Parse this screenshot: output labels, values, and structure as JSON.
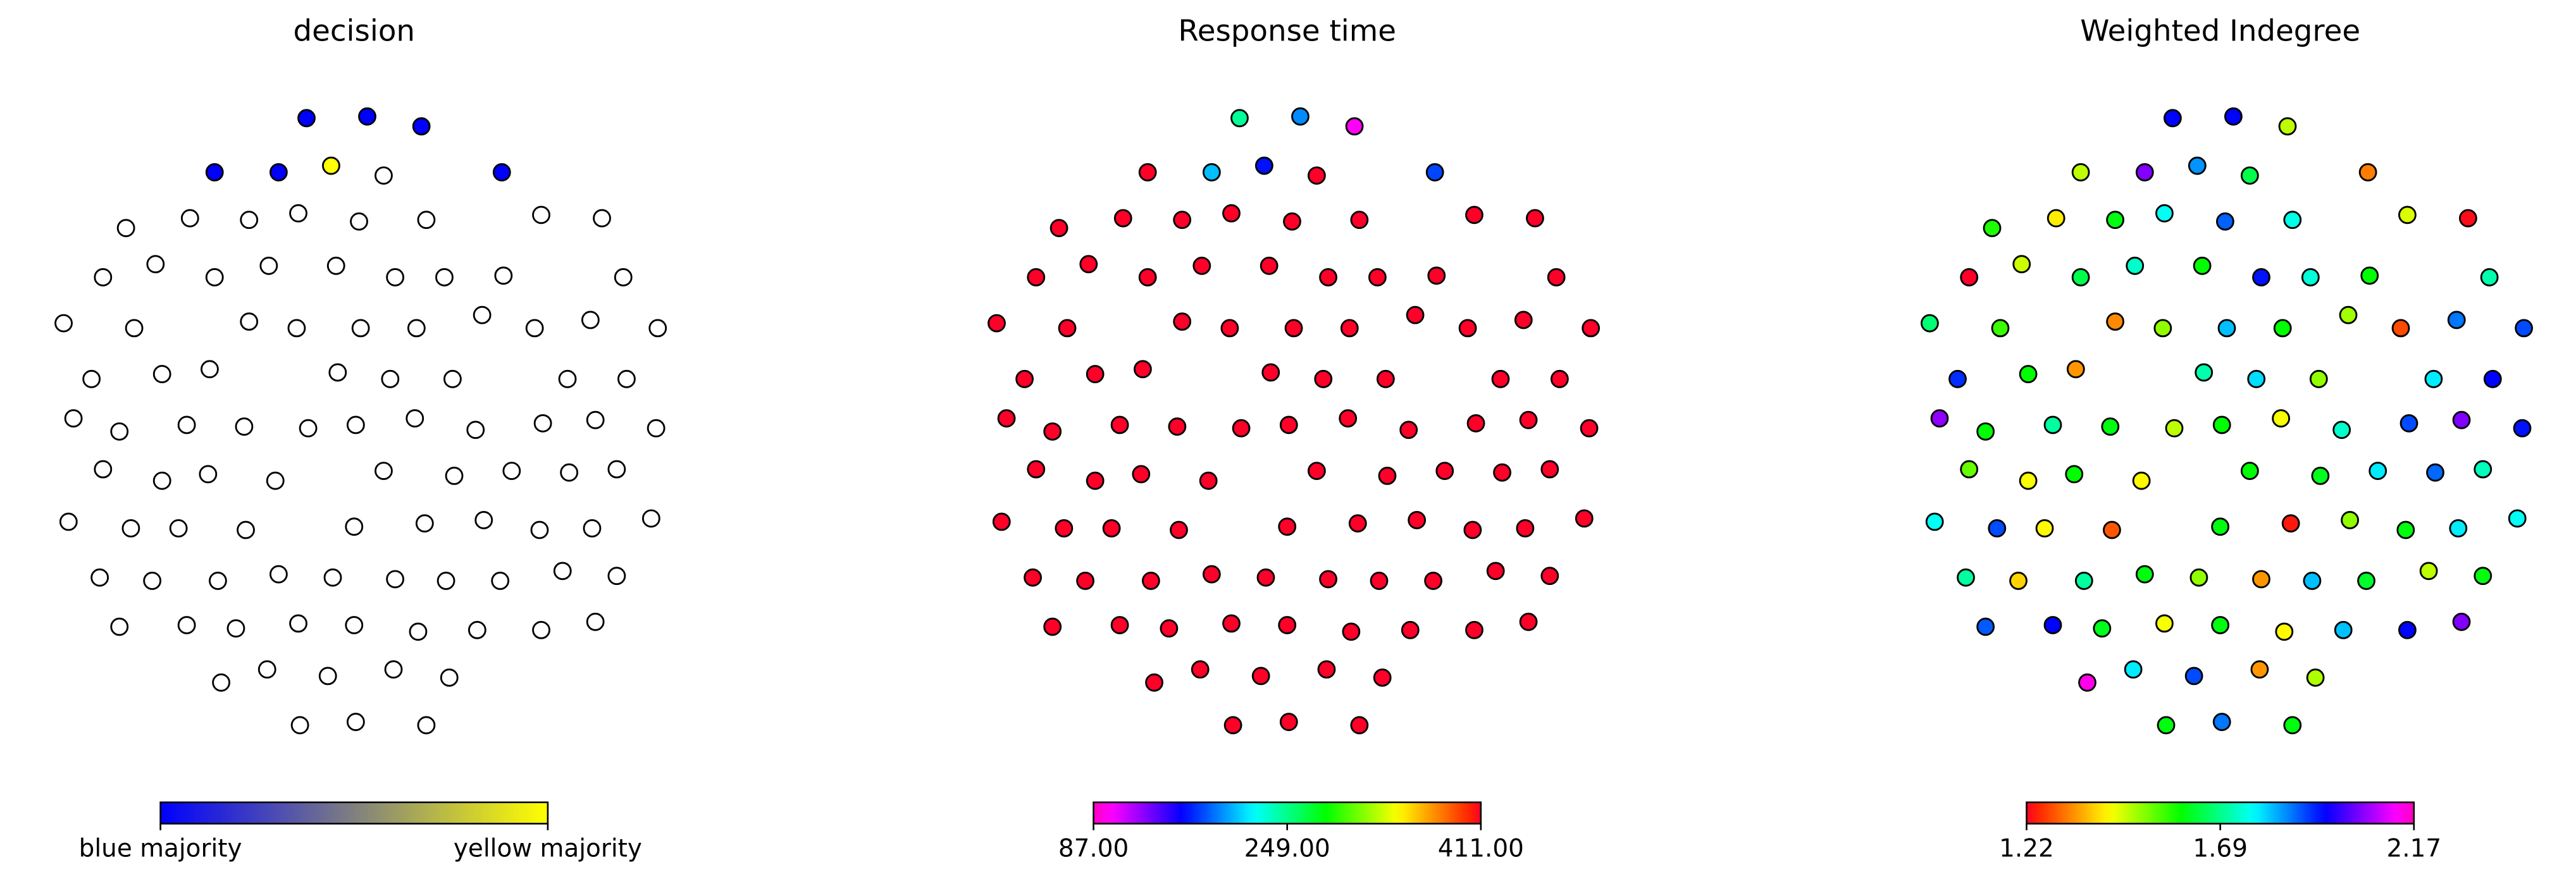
{
  "nodes": {
    "x": [
      186,
      223,
      256,
      130,
      169,
      201,
      233,
      305,
      76,
      115,
      151,
      181,
      218,
      259,
      329,
      366,
      62,
      94,
      130,
      163,
      204,
      240,
      270,
      306,
      379,
      38,
      81,
      151,
      180,
      219,
      253,
      293,
      325,
      359,
      400,
      55,
      98,
      127,
      205,
      237,
      275,
      345,
      381,
      44,
      72,
      113,
      148,
      187,
      216,
      252,
      289,
      330,
      362,
      399,
      62,
      98,
      126,
      167,
      233,
      276,
      311,
      346,
      375,
      41,
      79,
      108,
      149,
      215,
      258,
      294,
      328,
      360,
      396,
      60,
      92,
      132,
      169,
      202,
      240,
      271,
      304,
      342,
      375,
      72,
      113,
      143,
      181,
      215,
      254,
      290,
      329,
      362,
      134,
      162,
      199,
      239,
      273,
      182,
      216,
      259
    ],
    "y": [
      72,
      71,
      77,
      105,
      105,
      101,
      107,
      105,
      139,
      133,
      134,
      130,
      135,
      134,
      131,
      133,
      169,
      161,
      169,
      162,
      162,
      169,
      169,
      168,
      169,
      197,
      200,
      196,
      200,
      200,
      200,
      192,
      200,
      195,
      200,
      231,
      228,
      225,
      227,
      231,
      231,
      231,
      231,
      255,
      263,
      259,
      260,
      261,
      259,
      255,
      262,
      258,
      256,
      261,
      286,
      293,
      289,
      293,
      287,
      290,
      287,
      288,
      286,
      318,
      322,
      322,
      323,
      321,
      319,
      317,
      323,
      322,
      316,
      352,
      354,
      354,
      350,
      352,
      353,
      354,
      354,
      348,
      351,
      382,
      381,
      383,
      380,
      381,
      385,
      384,
      384,
      379,
      416,
      408,
      412,
      408,
      413,
      442,
      440,
      442
    ],
    "xlim": [
      0,
      440
    ],
    "ylim": [
      0,
      480
    ]
  },
  "chart_data": [
    {
      "type": "network",
      "title": "decision",
      "cmap": [
        "#0000ff",
        "#ffff00"
      ],
      "clim": [
        0,
        1
      ],
      "cticks": [
        {
          "value": 0,
          "label": "blue majority"
        },
        {
          "value": 1,
          "label": "yellow majority"
        }
      ],
      "values": [
        0,
        0,
        0,
        0,
        0,
        1,
        null,
        0,
        null,
        null,
        null,
        null,
        null,
        null,
        null,
        null,
        null,
        null,
        null,
        null,
        null,
        null,
        null,
        null,
        null,
        null,
        null,
        null,
        null,
        null,
        null,
        null,
        null,
        null,
        null,
        null,
        null,
        null,
        null,
        null,
        null,
        null,
        null,
        null,
        null,
        null,
        null,
        null,
        null,
        null,
        null,
        null,
        null,
        null,
        null,
        null,
        null,
        null,
        null,
        null,
        null,
        null,
        null,
        null,
        null,
        null,
        null,
        null,
        null,
        null,
        null,
        null,
        null,
        null,
        null,
        null,
        null,
        null,
        null,
        null,
        null,
        null,
        null,
        null,
        null,
        null,
        null,
        null,
        null,
        null,
        null,
        null,
        null,
        null,
        null,
        null,
        null,
        null,
        null,
        null
      ]
    },
    {
      "type": "network",
      "title": "Response time",
      "cmap": "gist_rainbow_r",
      "clim": [
        87,
        411
      ],
      "cticks": [
        {
          "value": 87,
          "label": "87.00"
        },
        {
          "value": 249,
          "label": "249.00"
        },
        {
          "value": 411,
          "label": "411.00"
        }
      ],
      "values": [
        246,
        194,
        100,
        411,
        206,
        165,
        411,
        178,
        411,
        411,
        411,
        411,
        411,
        411,
        411,
        411,
        411,
        411,
        411,
        411,
        411,
        411,
        411,
        411,
        411,
        411,
        411,
        411,
        411,
        411,
        411,
        411,
        411,
        411,
        411,
        411,
        411,
        411,
        411,
        411,
        411,
        411,
        411,
        411,
        411,
        411,
        411,
        411,
        411,
        411,
        411,
        411,
        411,
        411,
        411,
        411,
        411,
        411,
        411,
        411,
        411,
        411,
        411,
        411,
        411,
        411,
        411,
        411,
        411,
        411,
        411,
        411,
        411,
        411,
        411,
        411,
        411,
        411,
        411,
        411,
        411,
        411,
        411,
        411,
        411,
        411,
        411,
        411,
        411,
        411,
        411,
        411,
        411,
        411,
        411,
        411,
        411,
        411,
        411,
        411
      ]
    },
    {
      "type": "network",
      "title": "Weighted Indegree",
      "cmap": "gist_rainbow",
      "clim": [
        1.22,
        2.17
      ],
      "cticks": [
        1.22,
        {
          "value": 1.695,
          "label": "1.69"
        },
        2.17
      ],
      "values": [
        1.95,
        1.95,
        1.47,
        1.47,
        2.04,
        1.85,
        1.65,
        1.32,
        1.58,
        1.41,
        1.61,
        1.77,
        1.885,
        1.76,
        1.45,
        1.23,
        1.22,
        1.46,
        1.65,
        1.74,
        1.6,
        1.94,
        1.75,
        1.6,
        1.72,
        1.68,
        1.56,
        1.33,
        1.5,
        1.82,
        1.6,
        1.49,
        1.28,
        1.87,
        1.9,
        1.92,
        1.6,
        1.34,
        1.72,
        1.8,
        1.5,
        1.79,
        1.95,
        2.05,
        1.6,
        1.71,
        1.61,
        1.47,
        1.6,
        1.43,
        1.74,
        1.9,
        2.04,
        1.94,
        1.53,
        1.43,
        1.6,
        1.42,
        1.6,
        1.62,
        1.79,
        1.88,
        1.73,
        1.77,
        1.9,
        1.42,
        1.29,
        1.61,
        1.24,
        1.5,
        1.61,
        1.79,
        1.77,
        1.71,
        1.39,
        1.71,
        1.61,
        1.5,
        1.34,
        1.82,
        1.63,
        1.47,
        1.61,
        1.89,
        1.95,
        1.62,
        1.43,
        1.61,
        1.42,
        1.82,
        1.95,
        2.04,
        2.14,
        1.79,
        1.9,
        1.34,
        1.48,
        1.61,
        1.87,
        1.61
      ]
    }
  ]
}
